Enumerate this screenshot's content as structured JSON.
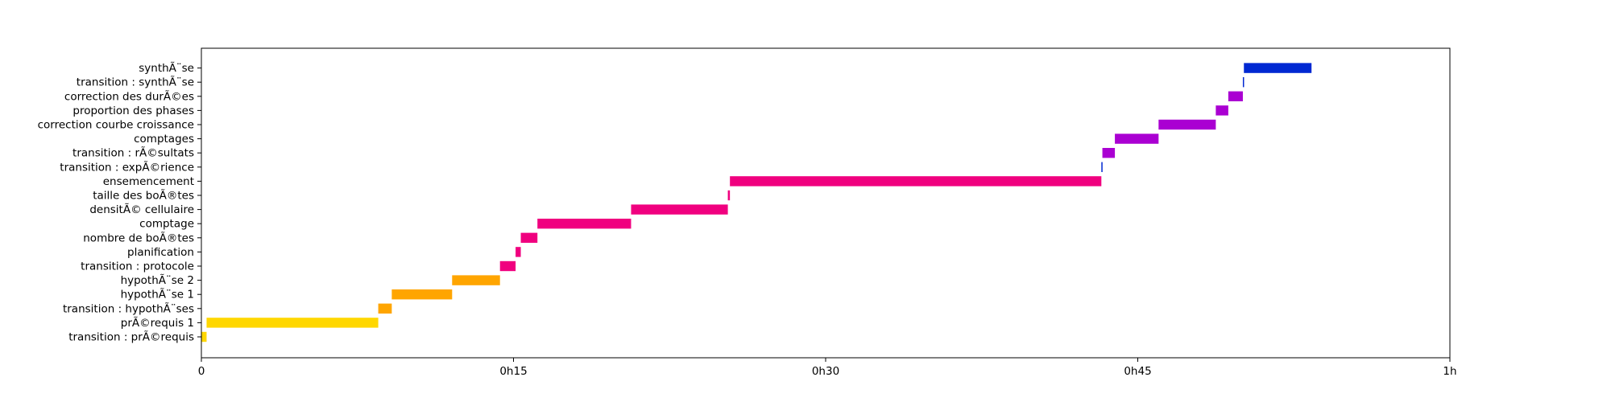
{
  "chart_data": {
    "type": "bar",
    "orientation": "horizontal",
    "grid": false,
    "xlabel": "",
    "ylabel": "",
    "xlim": [
      0,
      60
    ],
    "x_unit": "minutes",
    "x_ticks": [
      {
        "value": 0,
        "label": "0"
      },
      {
        "value": 15,
        "label": "0h15"
      },
      {
        "value": 30,
        "label": "0h30"
      },
      {
        "value": 45,
        "label": "0h45"
      },
      {
        "value": 60,
        "label": "1h"
      }
    ],
    "categories": [
      "transition : prÃ©requis",
      "prÃ©requis 1",
      "transition : hypothÃ¨ses",
      "hypothÃ¨se 1",
      "hypothÃ¨se 2",
      "transition : protocole",
      "planification",
      "nombre de boÃ®tes",
      "comptage",
      "densitÃ© cellulaire",
      "taille des boÃ®tes",
      "ensemencement",
      "transition : expÃ©rience",
      "transition : rÃ©sultats",
      "comptages",
      "correction courbe croissance",
      "proportion des phases",
      "correction des durÃ©es",
      "transition : synthÃ¨se",
      "synthÃ¨se"
    ],
    "bars": [
      {
        "start": 0.0,
        "end": 0.25,
        "color": "#ffd700"
      },
      {
        "start": 0.25,
        "end": 8.5,
        "color": "#ffd700"
      },
      {
        "start": 8.5,
        "end": 9.15,
        "color": "#ffa500"
      },
      {
        "start": 9.15,
        "end": 12.05,
        "color": "#ffa500"
      },
      {
        "start": 12.05,
        "end": 14.35,
        "color": "#ffa500"
      },
      {
        "start": 14.35,
        "end": 15.1,
        "color": "#f0007f"
      },
      {
        "start": 15.1,
        "end": 15.35,
        "color": "#f0007f"
      },
      {
        "start": 15.35,
        "end": 16.15,
        "color": "#f0007f"
      },
      {
        "start": 16.15,
        "end": 20.65,
        "color": "#f0007f"
      },
      {
        "start": 20.65,
        "end": 25.3,
        "color": "#f0007f"
      },
      {
        "start": 25.3,
        "end": 25.4,
        "color": "#f0007f"
      },
      {
        "start": 25.4,
        "end": 43.25,
        "color": "#f0007f"
      },
      {
        "start": 43.25,
        "end": 43.3,
        "color": "#0028d2"
      },
      {
        "start": 43.3,
        "end": 43.9,
        "color": "#aa00d2"
      },
      {
        "start": 43.9,
        "end": 46.0,
        "color": "#aa00d2"
      },
      {
        "start": 46.0,
        "end": 48.75,
        "color": "#aa00d2"
      },
      {
        "start": 48.75,
        "end": 49.35,
        "color": "#aa00d2"
      },
      {
        "start": 49.35,
        "end": 50.05,
        "color": "#aa00d2"
      },
      {
        "start": 50.05,
        "end": 50.1,
        "color": "#0028d2"
      },
      {
        "start": 50.1,
        "end": 53.35,
        "color": "#0028d2"
      }
    ]
  }
}
